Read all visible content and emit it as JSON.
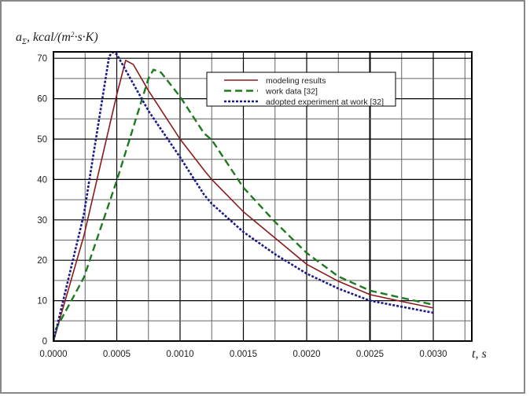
{
  "chart_data": {
    "type": "line",
    "title": "",
    "xlabel": "t, s",
    "ylabel": "a_Σ, kcal/(m²·s·K)",
    "ylabel_main": "a",
    "ylabel_sub": "Σ",
    "ylabel_rest": ", kcal/(m",
    "ylabel_sup": "2",
    "ylabel_end": "·s·K)",
    "xlim": [
      0,
      0.0033
    ],
    "ylim": [
      0,
      71.5
    ],
    "grid": true,
    "legend_position": "top-right",
    "x_ticks": [
      "0.0000",
      "0.0005",
      "0.0010",
      "0.0015",
      "0.0020",
      "0.0025",
      "0.0030"
    ],
    "x_tick_values": [
      0,
      0.0005,
      0.001,
      0.0015,
      0.002,
      0.0025,
      0.003
    ],
    "y_ticks": [
      "0",
      "10",
      "20",
      "30",
      "40",
      "50",
      "60",
      "70"
    ],
    "y_tick_values": [
      0,
      10,
      20,
      30,
      40,
      50,
      60,
      70
    ],
    "series": [
      {
        "name": "modeling results",
        "color": "#8b1a1a",
        "style": "solid",
        "x": [
          0,
          0.00024,
          0.0005,
          0.00057,
          0.00063,
          0.00075,
          0.001,
          0.00119,
          0.00125,
          0.0015,
          0.00175,
          0.002,
          0.00225,
          0.0025,
          0.00275,
          0.003
        ],
        "y": [
          0,
          26,
          61,
          69.5,
          68.5,
          62,
          50,
          42.3,
          40,
          32,
          25.5,
          19,
          14.8,
          11.5,
          9.8,
          8.2
        ]
      },
      {
        "name": "work data [32]",
        "color": "#1e7a1e",
        "style": "dashed",
        "x": [
          0,
          2e-05,
          0.00024,
          0.0005,
          0.00075,
          0.00079,
          0.00085,
          0.001,
          0.00119,
          0.00125,
          0.0015,
          0.00175,
          0.002,
          0.00225,
          0.0025,
          0.00275,
          0.003
        ],
        "y": [
          0,
          3,
          15.7,
          39.7,
          65,
          67.2,
          66.5,
          60.5,
          51.4,
          49.8,
          38,
          29.5,
          21.8,
          16,
          12.5,
          10.7,
          9
        ]
      },
      {
        "name": "adopted experiment at work [32]",
        "color": "#1a1a8b",
        "style": "dotted",
        "x": [
          0,
          0.00024,
          0.00044,
          0.000467,
          0.0005,
          0.00075,
          0.001,
          0.00119,
          0.00125,
          0.0015,
          0.00175,
          0.002,
          0.00225,
          0.0025,
          0.00275,
          0.003
        ],
        "y": [
          0,
          31.3,
          70.5,
          71.5,
          71,
          57,
          45.5,
          36.2,
          34,
          27,
          21.5,
          16.7,
          13,
          10,
          8.5,
          7
        ]
      }
    ]
  }
}
